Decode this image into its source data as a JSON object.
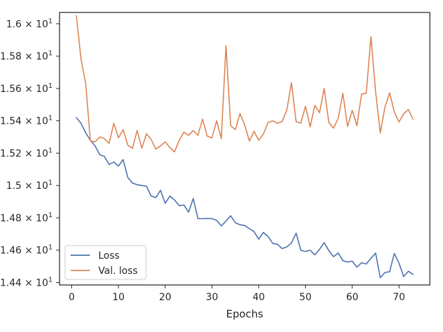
{
  "chart_data": {
    "type": "line",
    "title": "",
    "xlabel": "Epochs",
    "ylabel": "",
    "xlim": [
      -2.6,
      76.6
    ],
    "ylim": [
      14.385,
      16.07
    ],
    "yscale": "linear",
    "grid": false,
    "legend_position": "lower-left",
    "x_ticks": [
      0,
      10,
      20,
      30,
      40,
      50,
      60,
      70
    ],
    "x_tick_labels": [
      "0",
      "10",
      "20",
      "30",
      "40",
      "50",
      "60",
      "70"
    ],
    "y_ticks": [
      14.4,
      14.6,
      14.8,
      15.0,
      15.2,
      15.4,
      15.6,
      15.8,
      16.0
    ],
    "y_tick_labels": [
      {
        "mantissa": "1.44",
        "exp": "1"
      },
      {
        "mantissa": "1.46",
        "exp": "1"
      },
      {
        "mantissa": "1.48",
        "exp": "1"
      },
      {
        "mantissa": "1.5",
        "exp": "1"
      },
      {
        "mantissa": "1.52",
        "exp": "1"
      },
      {
        "mantissa": "1.54",
        "exp": "1"
      },
      {
        "mantissa": "1.56",
        "exp": "1"
      },
      {
        "mantissa": "1.58",
        "exp": "1"
      },
      {
        "mantissa": "1.6",
        "exp": "1"
      }
    ],
    "y_tick_base": "10",
    "x": [
      1,
      2,
      3,
      4,
      5,
      6,
      7,
      8,
      9,
      10,
      11,
      12,
      13,
      14,
      15,
      16,
      17,
      18,
      19,
      20,
      21,
      22,
      23,
      24,
      25,
      26,
      27,
      28,
      29,
      30,
      31,
      32,
      33,
      34,
      35,
      36,
      37,
      38,
      39,
      40,
      41,
      42,
      43,
      44,
      45,
      46,
      47,
      48,
      49,
      50,
      51,
      52,
      53,
      54,
      55,
      56,
      57,
      58,
      59,
      60,
      61,
      62,
      63,
      64,
      65,
      66,
      67,
      68,
      69,
      70,
      71,
      72,
      73
    ],
    "series": [
      {
        "name": "Loss",
        "color": "#4c72b0",
        "values": [
          15.42,
          15.385,
          15.325,
          15.28,
          15.245,
          15.19,
          15.18,
          15.13,
          15.145,
          15.12,
          15.16,
          15.05,
          15.015,
          15.005,
          15.0,
          14.995,
          14.935,
          14.925,
          14.97,
          14.89,
          14.935,
          14.91,
          14.875,
          14.88,
          14.835,
          14.92,
          14.795,
          14.795,
          14.797,
          14.795,
          14.785,
          14.75,
          14.78,
          14.813,
          14.77,
          14.757,
          14.753,
          14.733,
          14.715,
          14.668,
          14.71,
          14.685,
          14.642,
          14.637,
          14.61,
          14.62,
          14.645,
          14.705,
          14.6,
          14.592,
          14.6,
          14.572,
          14.605,
          14.647,
          14.597,
          14.56,
          14.583,
          14.535,
          14.527,
          14.532,
          14.495,
          14.522,
          14.515,
          14.55,
          14.582,
          14.43,
          14.462,
          14.467,
          14.58,
          14.52,
          14.437,
          14.47,
          14.45
        ]
      },
      {
        "name": "Val. loss",
        "color": "#dd8452",
        "values": [
          16.05,
          15.78,
          15.63,
          15.275,
          15.27,
          15.3,
          15.29,
          15.26,
          15.385,
          15.295,
          15.345,
          15.25,
          15.23,
          15.34,
          15.23,
          15.32,
          15.285,
          15.225,
          15.245,
          15.27,
          15.235,
          15.208,
          15.28,
          15.33,
          15.31,
          15.34,
          15.31,
          15.41,
          15.305,
          15.295,
          15.4,
          15.29,
          15.865,
          15.37,
          15.345,
          15.445,
          15.375,
          15.275,
          15.335,
          15.28,
          15.318,
          15.39,
          15.4,
          15.385,
          15.395,
          15.465,
          15.635,
          15.395,
          15.385,
          15.49,
          15.362,
          15.495,
          15.45,
          15.6,
          15.39,
          15.355,
          15.415,
          15.57,
          15.365,
          15.465,
          15.37,
          15.565,
          15.57,
          15.92,
          15.58,
          15.325,
          15.485,
          15.573,
          15.455,
          15.393,
          15.443,
          15.47,
          15.41
        ]
      }
    ]
  }
}
